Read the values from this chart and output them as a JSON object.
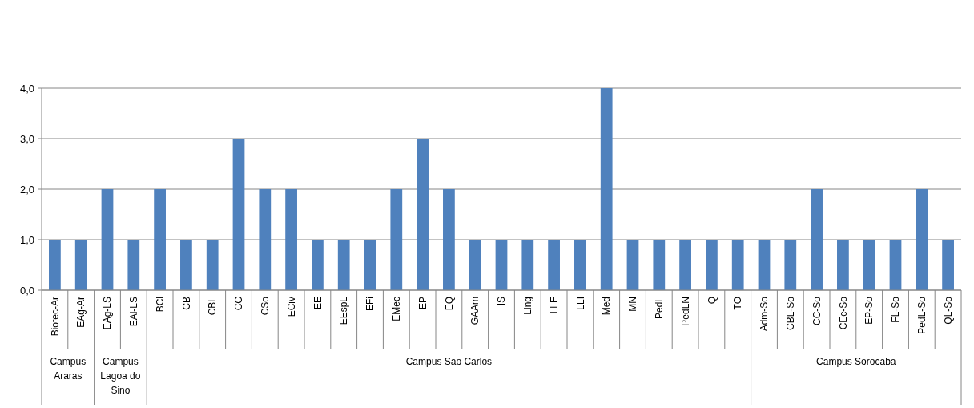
{
  "chart_data": {
    "type": "bar",
    "categories": [
      "Biotec-Ar",
      "EAg-Ar",
      "EAg-LS",
      "EAl-LS",
      "BCl",
      "CB",
      "CBL",
      "CC",
      "CSo",
      "ECiv",
      "EE",
      "EEspL",
      "EFi",
      "EMec",
      "EP",
      "EQ",
      "GAAm",
      "IS",
      "Ling",
      "LLE",
      "LLI",
      "Med",
      "MN",
      "PedL",
      "PedLN",
      "Q",
      "TO",
      "Adm-So",
      "CBL-So",
      "CC-So",
      "CEc-So",
      "EP-So",
      "FL-So",
      "PedL-So",
      "QL-So"
    ],
    "values": [
      1,
      1,
      2,
      1,
      2,
      1,
      1,
      3,
      2,
      2,
      1,
      1,
      1,
      2,
      3,
      2,
      1,
      1,
      1,
      1,
      1,
      4,
      1,
      1,
      1,
      1,
      1,
      1,
      1,
      2,
      1,
      1,
      1,
      2,
      1
    ],
    "color": "#4f81bd",
    "ylim": [
      0,
      4
    ],
    "yticks": [
      {
        "value": 0,
        "label": "0,0"
      },
      {
        "value": 1,
        "label": "1,0"
      },
      {
        "value": 2,
        "label": "2,0"
      },
      {
        "value": 3,
        "label": "3,0"
      },
      {
        "value": 4,
        "label": "4,0"
      }
    ],
    "grid": "y",
    "annotations": [
      "Campus Araras",
      "Campus Lagoa do Sino",
      "Campus São Carlos",
      "Campus Sorocaba"
    ]
  }
}
